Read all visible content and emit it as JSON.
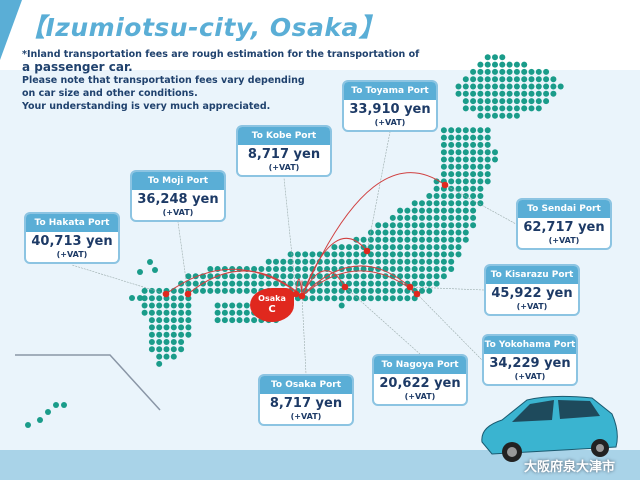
{
  "title": "【Izumiotsu-city, Osaka】",
  "note": {
    "line1": "*Inland transportation fees are rough estimation for the transportation of",
    "line2": "a passenger car.",
    "line3": "Please note that transportation fees vary depending",
    "line4": "on car size and other conditions.",
    "line5": "Your understanding is very much appreciated."
  },
  "ports": [
    {
      "name": "To Hakata Port",
      "price": "40,713 yen",
      "vat": "(+VAT)"
    },
    {
      "name": "To Moji Port",
      "price": "36,248 yen",
      "vat": "(+VAT)"
    },
    {
      "name": "To Kobe Port",
      "price": "8,717 yen",
      "vat": "(+VAT)"
    },
    {
      "name": "To Toyama Port",
      "price": "33,910 yen",
      "vat": "(+VAT)"
    },
    {
      "name": "To Sendai Port",
      "price": "62,717 yen",
      "vat": "(+VAT)"
    },
    {
      "name": "To Kisarazu Port",
      "price": "45,922 yen",
      "vat": "(+VAT)"
    },
    {
      "name": "To Yokohama Port",
      "price": "34,229 yen",
      "vat": "(+VAT)"
    },
    {
      "name": "To Nagoya Port",
      "price": "20,622 yen",
      "vat": "(+VAT)"
    },
    {
      "name": "To Osaka Port",
      "price": "8,717 yen",
      "vat": "(+VAT)"
    }
  ],
  "origin": {
    "name": "Osaka",
    "code": "C"
  },
  "footer_jp": "大阪府泉大津市",
  "colors": {
    "accent": "#5aaed6",
    "dots": "#1a9c8a",
    "route": "#e0281e",
    "text": "#1d3a66"
  }
}
